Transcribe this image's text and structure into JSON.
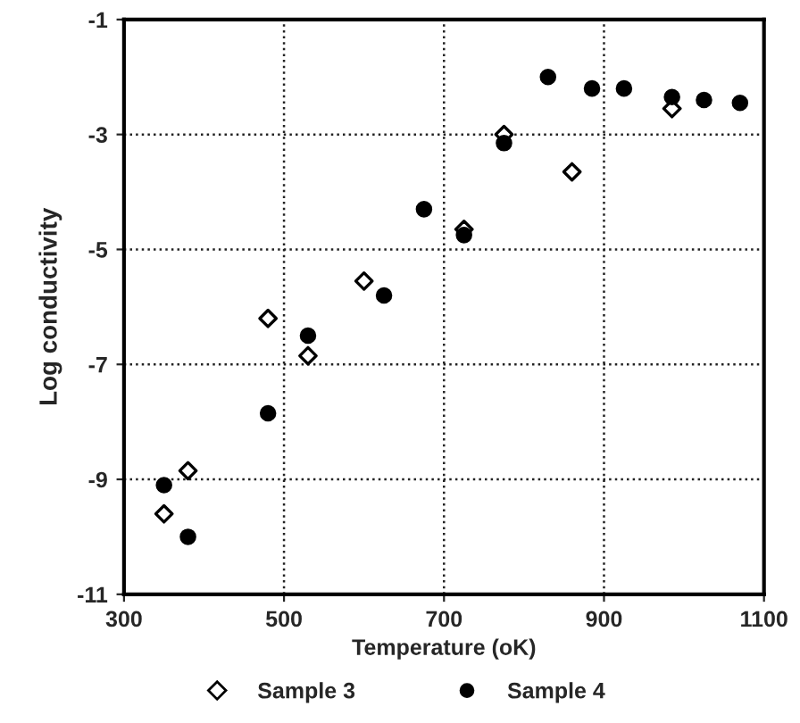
{
  "chart_data": {
    "type": "scatter",
    "xlabel": "Temperature (oK)",
    "ylabel": "Log conductivity",
    "xlim": [
      300,
      1100
    ],
    "xticks": [
      300,
      500,
      700,
      900,
      1100
    ],
    "ylim": [
      -11,
      -1
    ],
    "yticks": [
      -11,
      -9,
      -7,
      -5,
      -3,
      -1
    ],
    "grid": true,
    "line_style": "dotted",
    "legend": "bottom",
    "series": [
      {
        "name": "Sample 3",
        "color": "#000000",
        "marker": "diamond",
        "x": [
          350,
          380,
          480,
          530,
          600,
          725,
          775,
          860,
          985
        ],
        "values": [
          -9.6,
          -8.85,
          -6.2,
          -6.85,
          -5.55,
          -4.65,
          -3.0,
          -3.65,
          -2.55
        ]
      },
      {
        "name": "Sample 4",
        "color": "#000000",
        "marker": "circle",
        "x": [
          350,
          380,
          480,
          530,
          625,
          675,
          725,
          775,
          830,
          885,
          925,
          985,
          1025,
          1070
        ],
        "values": [
          -9.1,
          -10.0,
          -7.85,
          -6.5,
          -5.8,
          -4.3,
          -4.75,
          -3.15,
          -2.0,
          -2.2,
          -2.2,
          -2.35,
          -2.4,
          -2.45
        ]
      }
    ]
  }
}
